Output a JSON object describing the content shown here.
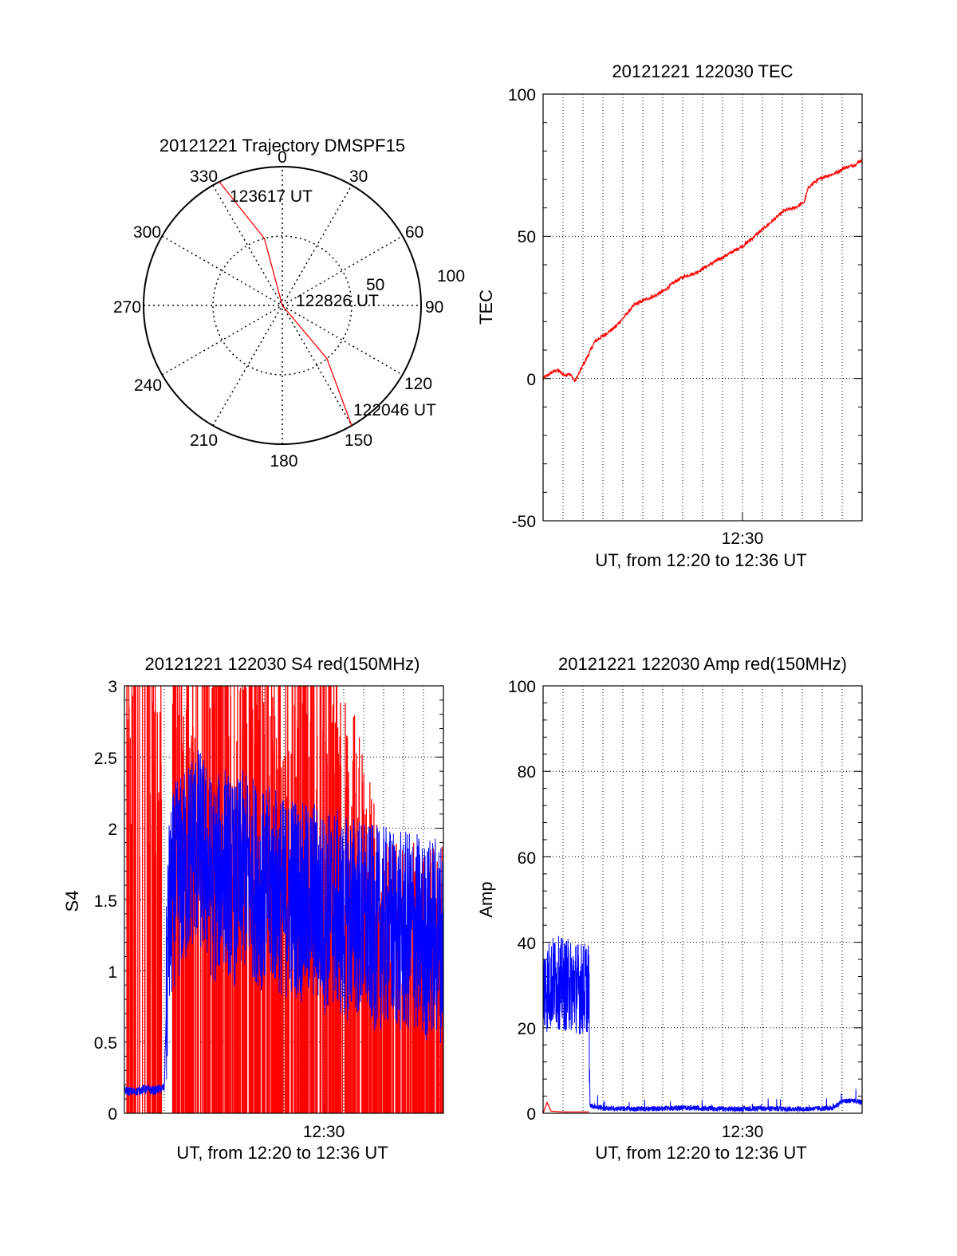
{
  "colors": {
    "red": "#ff0000",
    "blue": "#0000ff",
    "axis": "#000000"
  },
  "chart_data": [
    {
      "id": "trajectory",
      "type": "polar",
      "title": "20121221 Trajectory DMSPF15",
      "angle_labels": [
        "0",
        "30",
        "60",
        "90",
        "120",
        "150",
        "180",
        "210",
        "240",
        "270",
        "300",
        "330"
      ],
      "radial_labels": [
        "50",
        "100"
      ],
      "radial_max": 100,
      "series": [
        {
          "color": "red",
          "points": [
            [
              333,
              100
            ],
            [
              345,
              50
            ],
            [
              0,
              0
            ],
            [
              140,
              50
            ],
            [
              150,
              100
            ]
          ]
        }
      ],
      "annotations": [
        {
          "label": "123617 UT",
          "theta": 333,
          "r": 100
        },
        {
          "label": "122826 UT",
          "theta": 0,
          "r": 0
        },
        {
          "label": "122046 UT",
          "theta": 150,
          "r": 100
        }
      ]
    },
    {
      "id": "tec",
      "type": "line",
      "title": "20121221 122030 TEC",
      "xlabel": "UT, from 12:20 to 12:36 UT",
      "ylabel": "TEC",
      "xlim": [
        0,
        16
      ],
      "ylim": [
        -50,
        100
      ],
      "yticks": [
        "100",
        "50",
        "0",
        "-50"
      ],
      "xticks": [
        {
          "label": "12:30",
          "value": 10
        }
      ],
      "grid": true,
      "series": [
        {
          "color": "red",
          "x": [
            0,
            0.4,
            0.7,
            1.1,
            1.3,
            1.6,
            2.1,
            2.6,
            3.0,
            3.6,
            4.1,
            4.6,
            5.2,
            5.6,
            6.1,
            6.6,
            7.1,
            7.6,
            8.1,
            8.6,
            9.1,
            9.6,
            10.1,
            10.6,
            11.1,
            11.6,
            12.1,
            12.6,
            13.1,
            13.3,
            13.6,
            14.1,
            14.6,
            15.1,
            15.6,
            16.0
          ],
          "y": [
            0,
            2,
            3,
            1,
            2,
            -1,
            6,
            13,
            15,
            18,
            22,
            26,
            28,
            29,
            31,
            34,
            36,
            37,
            39,
            41,
            43,
            45,
            47,
            50,
            53,
            56,
            59,
            60,
            62,
            67,
            69,
            71,
            72,
            74,
            75,
            77
          ]
        }
      ]
    },
    {
      "id": "s4",
      "type": "line",
      "title": "20121221 122030 S4 red(150MHz)",
      "xlabel": "UT, from 12:20 to 12:36 UT",
      "ylabel": "S4",
      "xlim": [
        0,
        16
      ],
      "ylim": [
        0,
        3
      ],
      "yticks": [
        "3",
        "2.5",
        "2",
        "1.5",
        "1",
        "0.5",
        "0"
      ],
      "xticks": [
        {
          "label": "12:30",
          "value": 10
        }
      ],
      "grid": true,
      "series": [
        {
          "color": "red",
          "name": "",
          "x": [
            0.1,
            2.5,
            4.0,
            7.0,
            10.0,
            13.0,
            16.0
          ],
          "y": [
            3,
            3,
            3,
            3,
            3,
            1.5,
            1.5
          ]
        },
        {
          "color": "blue",
          "name": "",
          "x": [
            0.0,
            0.5,
            1.0,
            1.5,
            2.0,
            2.2,
            2.5,
            3.0,
            3.5,
            4.0,
            4.5,
            5.0,
            5.5,
            6.0,
            6.5,
            7.0,
            7.5,
            8.0,
            8.5,
            9.0,
            9.5,
            10.0,
            10.5,
            11.0,
            11.5,
            12.0,
            12.5,
            13.0,
            13.5,
            14.0,
            14.5,
            15.0,
            15.5,
            16.0
          ],
          "y": [
            0.16,
            0.15,
            0.17,
            0.16,
            0.18,
            1.3,
            1.6,
            1.7,
            1.9,
            1.8,
            1.6,
            1.75,
            1.6,
            1.7,
            1.65,
            1.55,
            1.6,
            1.5,
            1.55,
            1.45,
            1.5,
            1.4,
            1.45,
            1.35,
            1.4,
            1.35,
            1.3,
            1.3,
            1.3,
            1.25,
            1.3,
            1.2,
            1.25,
            1.2
          ]
        }
      ]
    },
    {
      "id": "amp",
      "type": "line",
      "title": "20121221 122030 Amp red(150MHz)",
      "xlabel": "UT, from 12:20 to 12:36 UT",
      "ylabel": "Amp",
      "xlim": [
        0,
        16
      ],
      "ylim": [
        0,
        100
      ],
      "yticks": [
        "100",
        "80",
        "60",
        "40",
        "20",
        "0"
      ],
      "xticks": [
        {
          "label": "12:30",
          "value": 10
        }
      ],
      "grid": true,
      "series": [
        {
          "color": "red",
          "name": "",
          "x": [
            0,
            0.2,
            0.4,
            1.0,
            2.0,
            2.3
          ],
          "y": [
            0,
            2.5,
            0.5,
            0.3,
            0.3,
            0.3
          ]
        },
        {
          "color": "blue",
          "name": "",
          "x": [
            0,
            0.3,
            0.6,
            1.0,
            1.5,
            2.0,
            2.3,
            2.35,
            3,
            5,
            7,
            9,
            11,
            13,
            14.5,
            15.0,
            15.5,
            16.0
          ],
          "y": [
            29,
            30,
            31,
            30,
            30,
            29,
            30,
            1.8,
            1.2,
            1.0,
            1.3,
            1.0,
            1.1,
            1.0,
            1.2,
            2.8,
            3.0,
            2.5
          ]
        }
      ]
    }
  ]
}
